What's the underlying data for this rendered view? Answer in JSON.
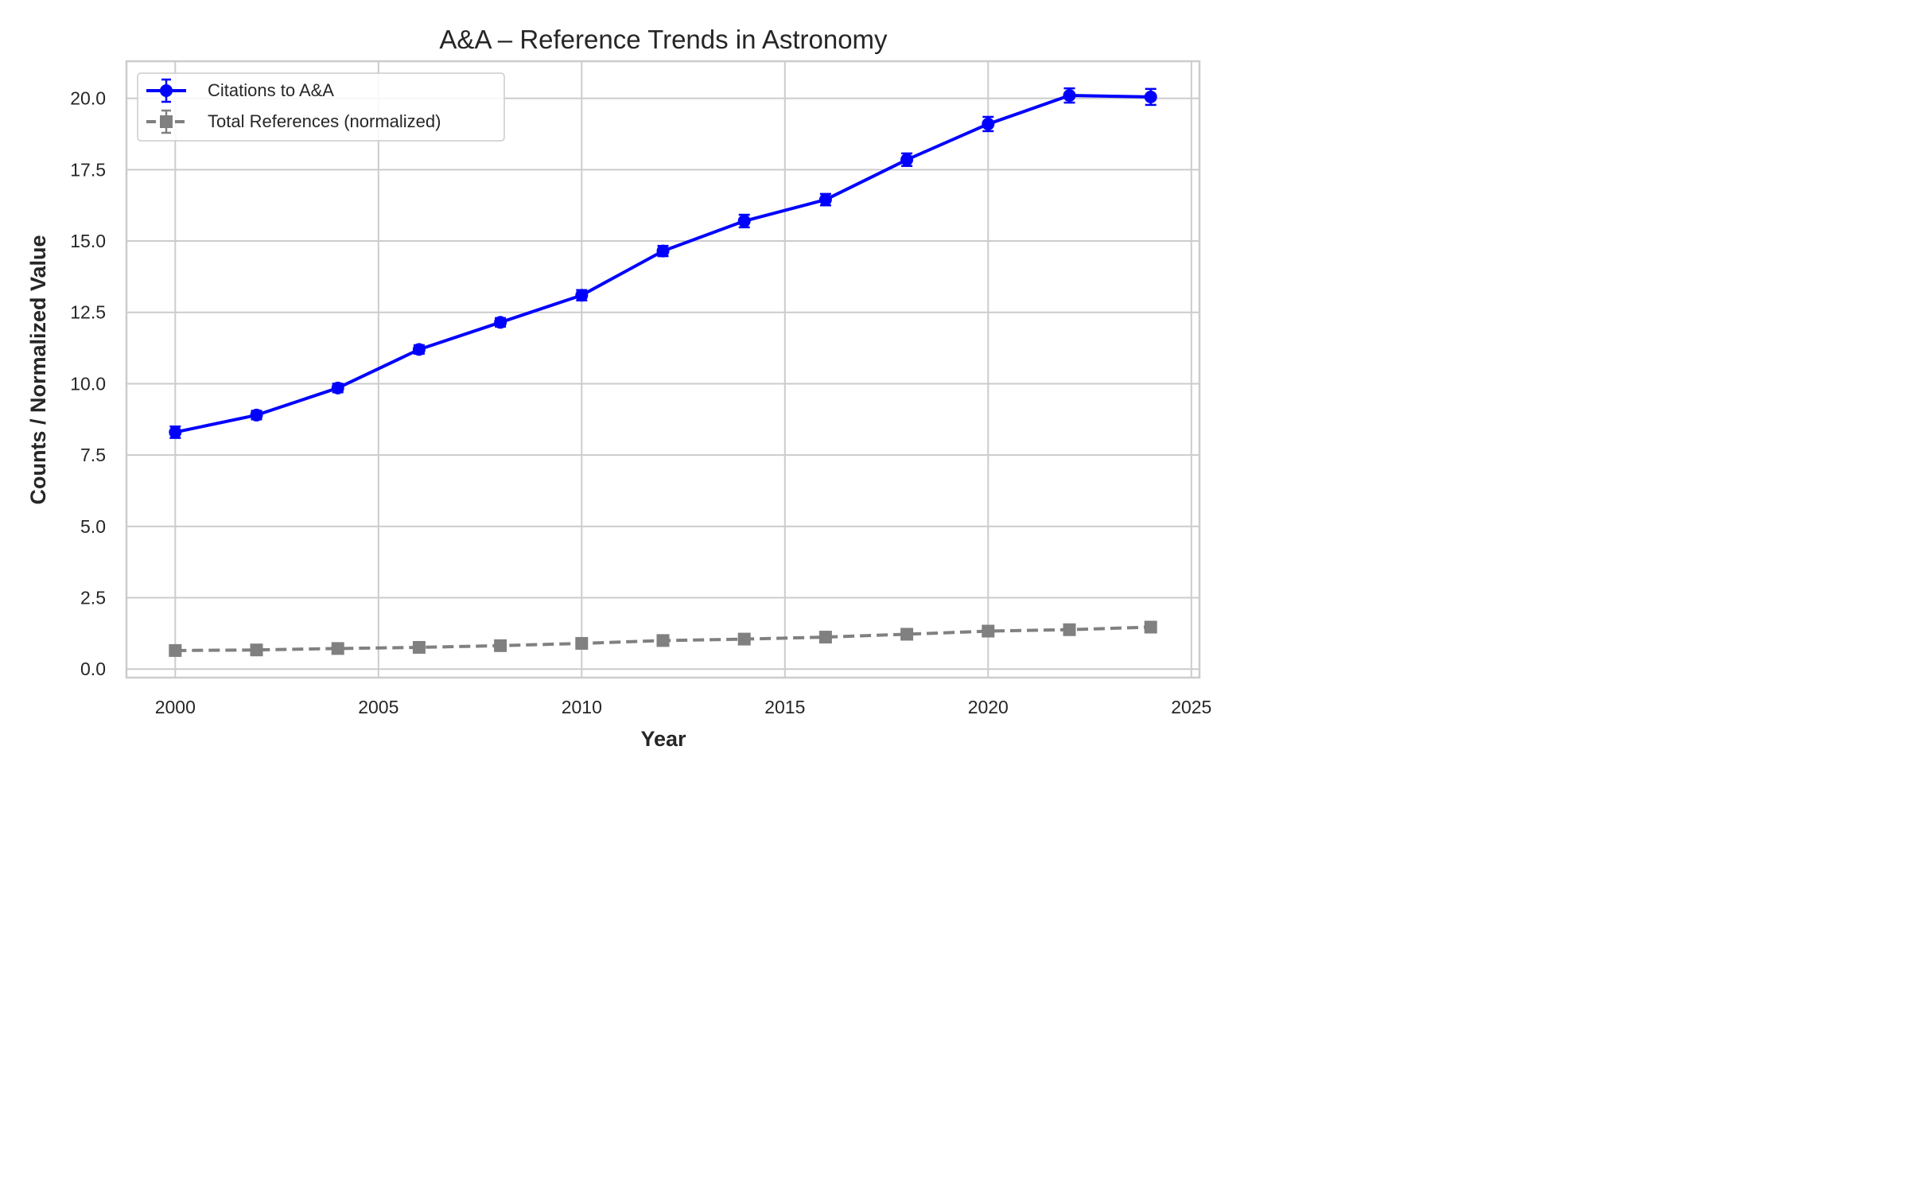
{
  "chart_data": {
    "type": "line",
    "title": "A&A – Reference Trends in Astronomy",
    "xlabel": "Year",
    "ylabel": "Counts / Normalized Value",
    "xlim": [
      1998.8,
      2025.2
    ],
    "ylim": [
      -0.3,
      21.3
    ],
    "xticks": [
      2000,
      2005,
      2010,
      2015,
      2020,
      2025
    ],
    "yticks": [
      0.0,
      2.5,
      5.0,
      7.5,
      10.0,
      12.5,
      15.0,
      17.5,
      20.0
    ],
    "xtick_labels": [
      "2000",
      "2005",
      "2010",
      "2015",
      "2020",
      "2025"
    ],
    "ytick_labels": [
      "0.0",
      "2.5",
      "5.0",
      "7.5",
      "10.0",
      "12.5",
      "15.0",
      "17.5",
      "20.0"
    ],
    "grid": true,
    "legend_position": "top-left",
    "x": [
      2000,
      2002,
      2004,
      2006,
      2008,
      2010,
      2012,
      2014,
      2016,
      2018,
      2020,
      2022,
      2024
    ],
    "series": [
      {
        "name": "Citations to A&A",
        "color": "#0000ff",
        "marker": "circle",
        "linestyle": "solid",
        "values": [
          8.3,
          8.9,
          9.85,
          11.2,
          12.15,
          13.1,
          14.65,
          15.7,
          16.45,
          17.85,
          19.1,
          20.1,
          20.05
        ],
        "errors": [
          0.2,
          0.15,
          0.15,
          0.15,
          0.15,
          0.18,
          0.18,
          0.22,
          0.2,
          0.22,
          0.25,
          0.25,
          0.28
        ]
      },
      {
        "name": "Total References (normalized)",
        "color": "#808080",
        "marker": "square",
        "linestyle": "dashed",
        "values": [
          0.65,
          0.67,
          0.72,
          0.76,
          0.82,
          0.9,
          1.0,
          1.05,
          1.12,
          1.22,
          1.33,
          1.38,
          1.47
        ],
        "errors": [
          0.03,
          0.03,
          0.03,
          0.03,
          0.03,
          0.03,
          0.04,
          0.04,
          0.04,
          0.04,
          0.04,
          0.05,
          0.05
        ]
      }
    ]
  }
}
